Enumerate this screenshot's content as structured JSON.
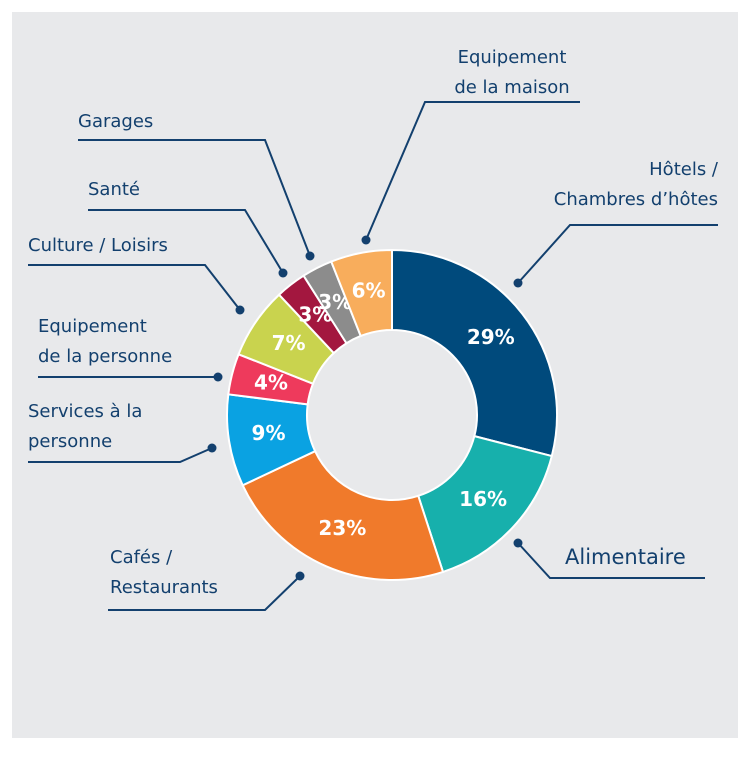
{
  "chart_data": {
    "type": "donut",
    "categories": [
      "Hôtels /\nChambres d’hôtes",
      "Alimentaire",
      "Cafés /\nRestaurants",
      "Services à la\npersonne",
      "Equipement\nde la personne",
      "Culture / Loisirs",
      "Santé",
      "Garages",
      "Equipement\nde la maison"
    ],
    "values": [
      29,
      16,
      23,
      9,
      4,
      7,
      3,
      3,
      6
    ],
    "value_labels": [
      "29%",
      "16%",
      "23%",
      "9%",
      "4%",
      "7%",
      "3%",
      "3%",
      "6%"
    ],
    "colors": [
      "#004a7c",
      "#17b0ac",
      "#f07a2b",
      "#0aa2e2",
      "#ee3a5c",
      "#c9d34e",
      "#a3173f",
      "#8c8c8c",
      "#f8ad5c"
    ]
  }
}
